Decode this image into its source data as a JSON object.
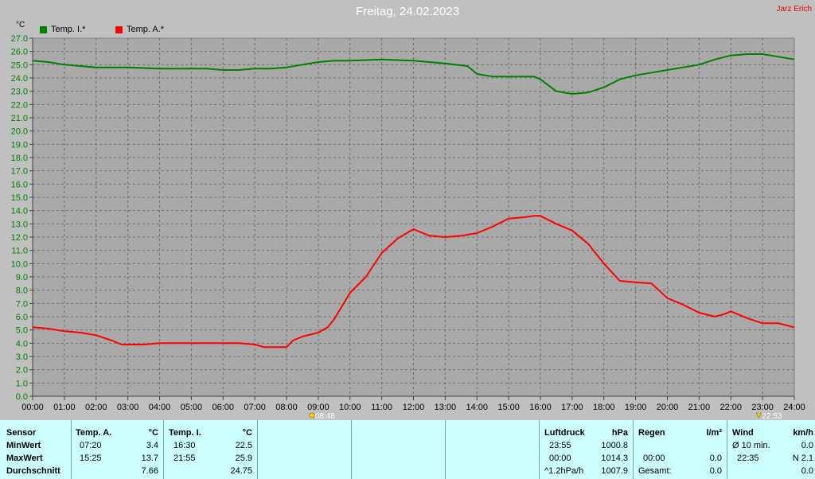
{
  "header": {
    "title": "Freitag, 24.02.2023",
    "author": "Jarz Erich",
    "y_unit": "°C"
  },
  "chart_data": {
    "type": "line",
    "xlabel": "",
    "ylabel": "°C",
    "xlim": [
      0,
      24
    ],
    "ylim": [
      0,
      27
    ],
    "y_ticks": [
      "0.0",
      "1.0",
      "2.0",
      "3.0",
      "4.0",
      "5.0",
      "6.0",
      "7.0",
      "8.0",
      "9.0",
      "10.0",
      "11.0",
      "12.0",
      "13.0",
      "14.0",
      "15.0",
      "16.0",
      "17.0",
      "18.0",
      "19.0",
      "20.0",
      "21.0",
      "22.0",
      "23.0",
      "24.0",
      "25.0",
      "26.0",
      "27.0"
    ],
    "x_ticks": [
      "00:00",
      "01:00",
      "02:00",
      "03:00",
      "04:00",
      "05:00",
      "06:00",
      "07:00",
      "08:00",
      "09:00",
      "10:00",
      "11:00",
      "12:00",
      "13:00",
      "14:00",
      "15:00",
      "16:00",
      "17:00",
      "18:00",
      "19:00",
      "20:00",
      "21:00",
      "22:00",
      "23:00",
      "24:00"
    ],
    "grid": true,
    "legend_placement": "top-left",
    "series": [
      {
        "name": "Temp. I.*",
        "color": "#008000",
        "x": [
          0,
          0.5,
          1,
          1.5,
          2,
          3,
          4,
          5,
          5.5,
          6,
          6.5,
          7,
          7.5,
          8,
          8.5,
          9,
          9.5,
          10,
          11,
          12,
          12.5,
          13,
          13.7,
          14,
          14.5,
          15,
          15.5,
          15.8,
          16,
          16.5,
          17,
          17.5,
          18,
          18.5,
          19,
          19.5,
          20,
          20.5,
          21,
          21.5,
          22,
          22.5,
          23,
          23.5,
          24
        ],
        "values": [
          25.3,
          25.2,
          25.0,
          24.9,
          24.8,
          24.8,
          24.7,
          24.7,
          24.7,
          24.6,
          24.6,
          24.7,
          24.7,
          24.8,
          25.0,
          25.2,
          25.3,
          25.3,
          25.4,
          25.3,
          25.2,
          25.1,
          24.9,
          24.3,
          24.1,
          24.1,
          24.1,
          24.1,
          23.9,
          23.0,
          22.8,
          22.9,
          23.3,
          23.9,
          24.2,
          24.4,
          24.6,
          24.8,
          25.0,
          25.4,
          25.7,
          25.8,
          25.8,
          25.6,
          25.4
        ]
      },
      {
        "name": "Temp. A.*",
        "color": "#ff0000",
        "x": [
          0,
          0.5,
          1,
          1.5,
          2,
          2.5,
          2.8,
          3,
          3.5,
          4,
          4.5,
          5,
          5.5,
          6,
          6.5,
          7,
          7.3,
          7.6,
          8,
          8.2,
          8.5,
          9,
          9.3,
          9.5,
          10,
          10.5,
          11,
          11.5,
          12,
          12.5,
          13,
          13.5,
          14,
          14.5,
          15,
          15.5,
          15.8,
          16,
          16.5,
          17,
          17.5,
          18,
          18.5,
          19,
          19.5,
          20,
          20.5,
          21,
          21.5,
          21.8,
          22,
          22.5,
          23,
          23.5,
          24
        ],
        "values": [
          5.2,
          5.1,
          4.9,
          4.8,
          4.6,
          4.2,
          3.9,
          3.9,
          3.9,
          4.0,
          4.0,
          4.0,
          4.0,
          4.0,
          4.0,
          3.9,
          3.7,
          3.7,
          3.7,
          4.2,
          4.5,
          4.8,
          5.2,
          5.8,
          7.8,
          9.0,
          10.8,
          11.9,
          12.6,
          12.1,
          12.0,
          12.1,
          12.3,
          12.8,
          13.4,
          13.5,
          13.6,
          13.6,
          13.0,
          12.5,
          11.5,
          10.0,
          8.7,
          8.6,
          8.5,
          7.4,
          6.9,
          6.3,
          6.0,
          6.2,
          6.4,
          5.9,
          5.5,
          5.5,
          5.2
        ]
      }
    ],
    "annotations": [
      {
        "label": "08:48",
        "marker": "sunrise",
        "x": 8.8
      },
      {
        "label": "22:53",
        "marker": "moon",
        "x": 22.883
      }
    ]
  },
  "stats": {
    "sensor_header": "Sensor",
    "row_labels": [
      "MinWert",
      "MaxWert",
      "Durchschnitt"
    ],
    "temp_a": {
      "header": "Temp. A.",
      "unit": "°C",
      "min_time": "07:20",
      "min_val": "3.4",
      "max_time": "15:25",
      "max_val": "13.7",
      "avg": "7.66"
    },
    "temp_i": {
      "header": "Temp. I.",
      "unit": "°C",
      "min_time": "16:30",
      "min_val": "22.5",
      "max_time": "21:55",
      "max_val": "25.9",
      "avg": "24.75"
    },
    "pressure": {
      "header": "Luftdruck",
      "unit": "hPa",
      "min_time": "23:55",
      "min_val": "1000.8",
      "max_time": "00:00",
      "max_val": "1014.3",
      "trend": "^1.2hPa/h",
      "avg": "1007.9"
    },
    "rain": {
      "header": "Regen",
      "unit": "l/m²",
      "max_time": "00:00",
      "max_val": "0.0",
      "total_label": "Gesamt:",
      "total": "0.0"
    },
    "wind": {
      "header": "Wind",
      "unit": "km/h",
      "avg_label": "Ø 10 min.",
      "avg_val": "0.0",
      "max_time": "22:35",
      "max_val": "N 2.1",
      "total": "0.0"
    }
  }
}
